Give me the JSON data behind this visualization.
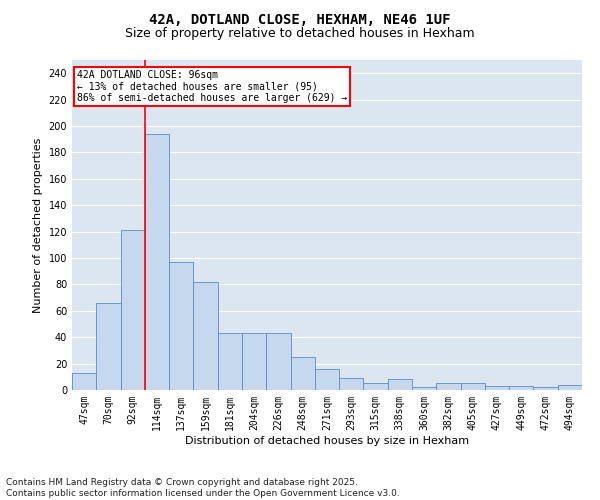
{
  "title1": "42A, DOTLAND CLOSE, HEXHAM, NE46 1UF",
  "title2": "Size of property relative to detached houses in Hexham",
  "xlabel": "Distribution of detached houses by size in Hexham",
  "ylabel": "Number of detached properties",
  "categories": [
    "47sqm",
    "70sqm",
    "92sqm",
    "114sqm",
    "137sqm",
    "159sqm",
    "181sqm",
    "204sqm",
    "226sqm",
    "248sqm",
    "271sqm",
    "293sqm",
    "315sqm",
    "338sqm",
    "360sqm",
    "382sqm",
    "405sqm",
    "427sqm",
    "449sqm",
    "472sqm",
    "494sqm"
  ],
  "values": [
    13,
    66,
    121,
    194,
    97,
    82,
    43,
    43,
    43,
    25,
    16,
    9,
    5,
    8,
    2,
    5,
    5,
    3,
    3,
    2,
    4
  ],
  "bar_color": "#c5d8ee",
  "bar_edge_color": "#5b8cc8",
  "bg_color": "#dce6f1",
  "vline_x": 2.5,
  "annotation_text": "42A DOTLAND CLOSE: 96sqm\n← 13% of detached houses are smaller (95)\n86% of semi-detached houses are larger (629) →",
  "annotation_box_color": "white",
  "annotation_box_edge": "red",
  "vline_color": "red",
  "ylim": [
    0,
    250
  ],
  "yticks": [
    0,
    20,
    40,
    60,
    80,
    100,
    120,
    140,
    160,
    180,
    200,
    220,
    240
  ],
  "footer": "Contains HM Land Registry data © Crown copyright and database right 2025.\nContains public sector information licensed under the Open Government Licence v3.0.",
  "title_fontsize": 10,
  "subtitle_fontsize": 9,
  "axis_label_fontsize": 8,
  "tick_fontsize": 7,
  "footer_fontsize": 6.5
}
